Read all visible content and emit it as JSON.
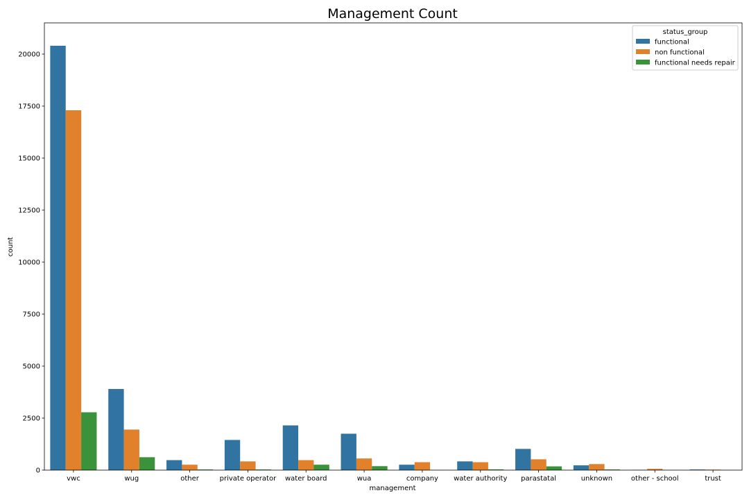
{
  "chart_data": {
    "type": "bar",
    "title": "Management Count",
    "xlabel": "management",
    "ylabel": "count",
    "ylim": [
      0,
      21500
    ],
    "yticks": [
      0,
      2500,
      5000,
      7500,
      10000,
      12500,
      15000,
      17500,
      20000
    ],
    "grid": false,
    "legend": {
      "title": "status_group",
      "position": "top-right"
    },
    "categories": [
      "vwc",
      "wug",
      "other",
      "private operator",
      "water board",
      "wua",
      "company",
      "water authority",
      "parastatal",
      "unknown",
      "other - school",
      "trust"
    ],
    "series": [
      {
        "name": "functional",
        "color": "#3274a1",
        "values": [
          20400,
          3900,
          480,
          1450,
          2150,
          1750,
          260,
          420,
          1020,
          230,
          10,
          30
        ]
      },
      {
        "name": "non functional",
        "color": "#e1812c",
        "values": [
          17300,
          1950,
          260,
          420,
          480,
          560,
          380,
          380,
          520,
          290,
          60,
          25
        ]
      },
      {
        "name": "functional needs repair",
        "color": "#3a923a",
        "values": [
          2780,
          620,
          30,
          30,
          260,
          190,
          5,
          35,
          180,
          30,
          5,
          5
        ]
      }
    ]
  }
}
